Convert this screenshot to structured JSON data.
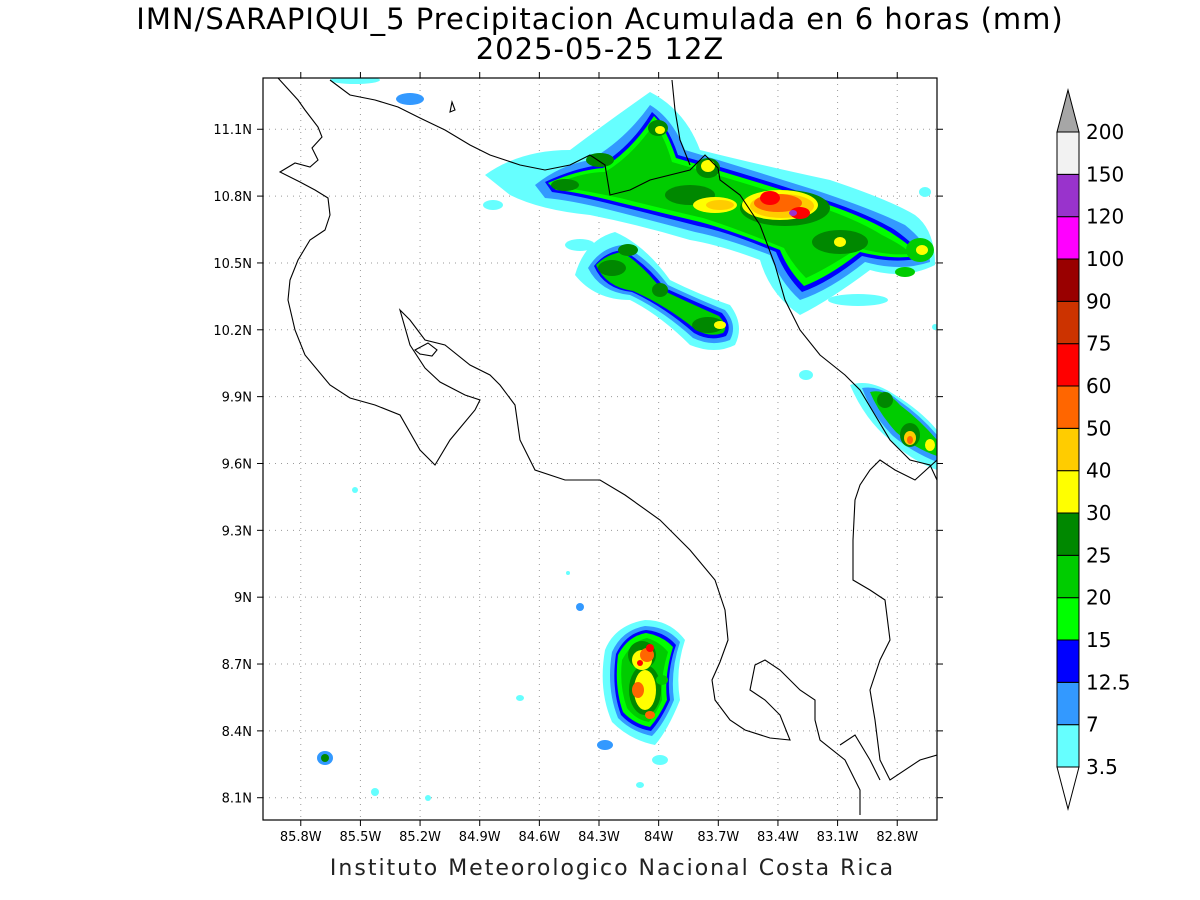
{
  "title": {
    "line1": "IMN/SARAPIQUI_5 Precipitacion Acumulada en 6 horas (mm)",
    "line2": "2025-05-25 12Z"
  },
  "footer": "Instituto Meteorologico Nacional Costa Rica",
  "map": {
    "lon_range": [
      -85.99,
      -82.6
    ],
    "lat_range": [
      8.0,
      11.33
    ],
    "lon_ticks": [
      {
        "value": -85.8,
        "label": "85.8W"
      },
      {
        "value": -85.5,
        "label": "85.5W"
      },
      {
        "value": -85.2,
        "label": "85.2W"
      },
      {
        "value": -84.9,
        "label": "84.9W"
      },
      {
        "value": -84.6,
        "label": "84.6W"
      },
      {
        "value": -84.3,
        "label": "84.3W"
      },
      {
        "value": -84.0,
        "label": "84W"
      },
      {
        "value": -83.7,
        "label": "83.7W"
      },
      {
        "value": -83.4,
        "label": "83.4W"
      },
      {
        "value": -83.1,
        "label": "83.1W"
      },
      {
        "value": -82.8,
        "label": "82.8W"
      }
    ],
    "lat_ticks": [
      {
        "value": 11.1,
        "label": "11.1N"
      },
      {
        "value": 10.8,
        "label": "10.8N"
      },
      {
        "value": 10.5,
        "label": "10.5N"
      },
      {
        "value": 10.2,
        "label": "10.2N"
      },
      {
        "value": 9.9,
        "label": "9.9N"
      },
      {
        "value": 9.6,
        "label": "9.6N"
      },
      {
        "value": 9.3,
        "label": "9.3N"
      },
      {
        "value": 9.0,
        "label": "9N"
      },
      {
        "value": 8.7,
        "label": "8.7N"
      },
      {
        "value": 8.4,
        "label": "8.4N"
      },
      {
        "value": 8.1,
        "label": "8.1N"
      }
    ],
    "grid": true
  },
  "colorbar": {
    "labels": [
      "3.5",
      "7",
      "12.5",
      "15",
      "20",
      "25",
      "30",
      "40",
      "50",
      "60",
      "75",
      "90",
      "100",
      "120",
      "150",
      "200"
    ],
    "colors": [
      "#66ffff",
      "#3399ff",
      "#0000ff",
      "#00ff00",
      "#00cc00",
      "#008800",
      "#ffff00",
      "#ffcc00",
      "#ff6600",
      "#ff0000",
      "#cc3300",
      "#990000",
      "#ff00ff",
      "#9933cc",
      "#f2f2f2"
    ],
    "under_color": "#ffffff",
    "over_color": "#a6a6a6"
  }
}
